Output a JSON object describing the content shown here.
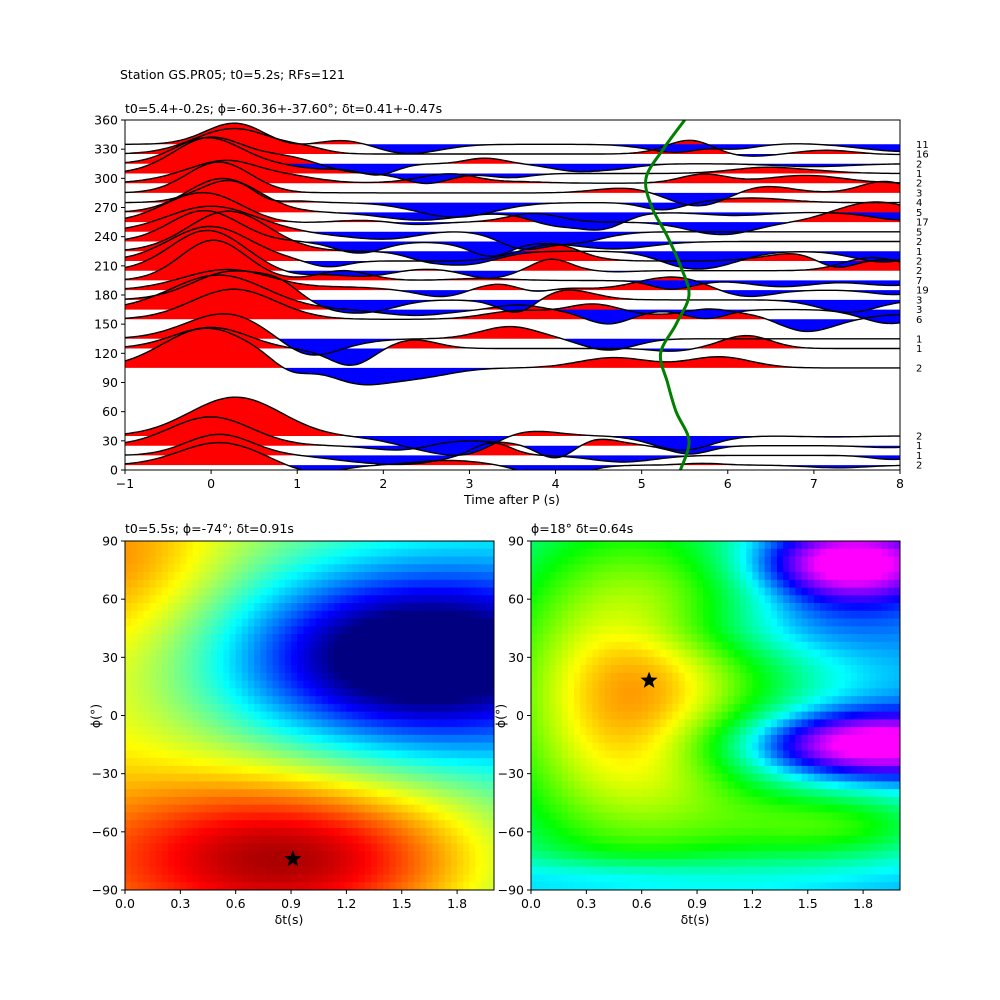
{
  "figure": {
    "suptitle": "Station GS.PR05; t0=5.2s; RFs=121"
  },
  "chart_data": [
    {
      "type": "wiggle",
      "title": "t0=5.4+-0.2s; ϕ=-60.36+-37.60°; δt=0.41+-0.47s",
      "xlabel": "Time after P (s)",
      "ylabel": "",
      "xlim": [
        -1,
        8
      ],
      "ylim": [
        0,
        360
      ],
      "xticks": [
        "−1",
        "0",
        "1",
        "2",
        "3",
        "4",
        "5",
        "6",
        "7",
        "8"
      ],
      "yticks": [
        "0",
        "30",
        "60",
        "90",
        "120",
        "150",
        "180",
        "210",
        "240",
        "270",
        "300",
        "330",
        "360"
      ],
      "band_colors": {
        "positive": "#ff0000",
        "negative": "#0000ff",
        "trace": "#000000"
      },
      "traces": [
        {
          "baz": 5,
          "count": "2"
        },
        {
          "baz": 15,
          "count": "1"
        },
        {
          "baz": 25,
          "count": "1"
        },
        {
          "baz": 35,
          "count": "2"
        },
        {
          "baz": 105,
          "count": "2"
        },
        {
          "baz": 125,
          "count": "1"
        },
        {
          "baz": 135,
          "count": "1"
        },
        {
          "baz": 155,
          "count": "6"
        },
        {
          "baz": 165,
          "count": "3"
        },
        {
          "baz": 175,
          "count": "3"
        },
        {
          "baz": 185,
          "count": "19"
        },
        {
          "baz": 195,
          "count": "7"
        },
        {
          "baz": 205,
          "count": "2"
        },
        {
          "baz": 215,
          "count": "2"
        },
        {
          "baz": 225,
          "count": "1"
        },
        {
          "baz": 235,
          "count": "2"
        },
        {
          "baz": 245,
          "count": "5"
        },
        {
          "baz": 255,
          "count": "17"
        },
        {
          "baz": 265,
          "count": "5"
        },
        {
          "baz": 275,
          "count": "4"
        },
        {
          "baz": 285,
          "count": "3"
        },
        {
          "baz": 295,
          "count": "2"
        },
        {
          "baz": 305,
          "count": "1"
        },
        {
          "baz": 315,
          "count": "2"
        },
        {
          "baz": 325,
          "count": "16"
        },
        {
          "baz": 335,
          "count": "11"
        }
      ],
      "t0_curve": {
        "color": "#008000",
        "points": [
          [
            5.45,
            0
          ],
          [
            5.55,
            30
          ],
          [
            5.4,
            60
          ],
          [
            5.3,
            90
          ],
          [
            5.22,
            120
          ],
          [
            5.4,
            150
          ],
          [
            5.55,
            180
          ],
          [
            5.45,
            210
          ],
          [
            5.3,
            240
          ],
          [
            5.12,
            270
          ],
          [
            5.05,
            300
          ],
          [
            5.25,
            330
          ],
          [
            5.5,
            360
          ]
        ]
      }
    },
    {
      "type": "heatmap",
      "title": "t0=5.5s; ϕ=-74°; δt=0.91s",
      "xlabel": "δt(s)",
      "ylabel": "ϕ(°)",
      "xlim": [
        0,
        2
      ],
      "ylim": [
        -90,
        90
      ],
      "xticks": [
        "0.0",
        "0.3",
        "0.6",
        "0.9",
        "1.2",
        "1.5",
        "1.8"
      ],
      "yticks": [
        "−90",
        "−60",
        "−30",
        "0",
        "30",
        "60",
        "90"
      ],
      "colormap": "jet",
      "best": {
        "dt": 0.91,
        "phi": -74
      }
    },
    {
      "type": "heatmap",
      "title": "ϕ=18° δt=0.64s",
      "xlabel": "δt(s)",
      "ylabel": "ϕ(°)",
      "xlim": [
        0,
        2
      ],
      "ylim": [
        -90,
        90
      ],
      "xticks": [
        "0.0",
        "0.3",
        "0.6",
        "0.9",
        "1.2",
        "1.5",
        "1.8"
      ],
      "yticks": [
        "−90",
        "−60",
        "−30",
        "0",
        "30",
        "60",
        "90"
      ],
      "colormap": "hsv",
      "best": {
        "dt": 0.64,
        "phi": 18
      }
    }
  ]
}
